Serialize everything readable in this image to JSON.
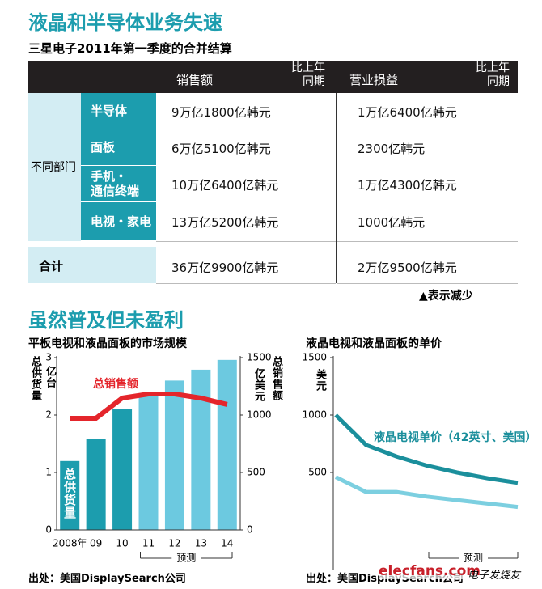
{
  "header": {
    "title": "液晶和半导体业务失速",
    "subtitle": "三星电子2011年第一季度的合并结算"
  },
  "table": {
    "columns": [
      "销售额",
      "比上年\n同期",
      "营业损益",
      "比上年\n同期"
    ],
    "group": "不同部门",
    "rows": [
      {
        "label": "半导体",
        "sales": "9万亿1800亿韩元",
        "profit": "1万亿6400亿韩元"
      },
      {
        "label": "面板",
        "sales": "6万亿5100亿韩元",
        "profit": "2300亿韩元"
      },
      {
        "label": "手机・\n通信终端",
        "sales": "10万亿6400亿韩元",
        "profit": "1万亿4300亿韩元"
      },
      {
        "label": "电视・家电",
        "sales": "13万亿5200亿韩元",
        "profit": "1000亿韩元"
      }
    ],
    "total": {
      "label": "合计",
      "sales": "36万亿9900亿韩元",
      "profit": "2万亿9500亿韩元"
    },
    "note": "▲表示减少"
  },
  "section_title": "虽然普及但未盈利",
  "chart_data": [
    {
      "type": "bar-line",
      "title": "平板电视和液晶面板的市场规模",
      "categories": [
        "2008年",
        "09",
        "10",
        "11",
        "12",
        "13",
        "14"
      ],
      "series": [
        {
          "name": "总供货量",
          "colors": [
            "#1c9dae",
            "#1c9dae",
            "#1c9dae",
            "#6cc9e0",
            "#6cc9e0",
            "#6cc9e0",
            "#6cc9e0"
          ],
          "values": [
            1.2,
            1.59,
            2.11,
            2.37,
            2.6,
            2.79,
            2.96
          ]
        },
        {
          "name": "总销售额",
          "color": "#e4252b",
          "values": [
            972,
            972,
            1148,
            1183,
            1183,
            1148,
            1092
          ],
          "axis": "y2"
        }
      ],
      "ylabel": "总供货量",
      "ylabel_unit": "亿台",
      "y2label": "总销售额",
      "y2label_unit": "亿美元",
      "ylim": [
        0,
        3
      ],
      "yticks": [
        0,
        1,
        2,
        3
      ],
      "y2lim": [
        0,
        1500
      ],
      "y2ticks": [
        0,
        500,
        1000,
        1500
      ],
      "forecast_label": "预测"
    },
    {
      "type": "line",
      "title": "液晶电视和液晶面板的单价",
      "categories": [
        null,
        null,
        null,
        null,
        null,
        null,
        null
      ],
      "series": [
        {
          "name": "液晶电视单价（42英寸、美国）",
          "color": "#1b8f9c",
          "values": [
            1000,
            740,
            640,
            560,
            500,
            450,
            410
          ]
        },
        {
          "color": "#7ccfe0",
          "values": [
            460,
            330,
            330,
            290,
            260,
            230,
            200
          ]
        }
      ],
      "yunit": "美元",
      "ylim": [
        0,
        1500
      ],
      "yticks": [
        500,
        1000,
        1500
      ],
      "forecast_label": "预测"
    }
  ],
  "sources": [
    "出处：美国DisplaySearch公司",
    "出处：美国DisplaySearch公司"
  ],
  "watermark": {
    "site": "elecfans.com",
    "name": "电子发烧友"
  }
}
